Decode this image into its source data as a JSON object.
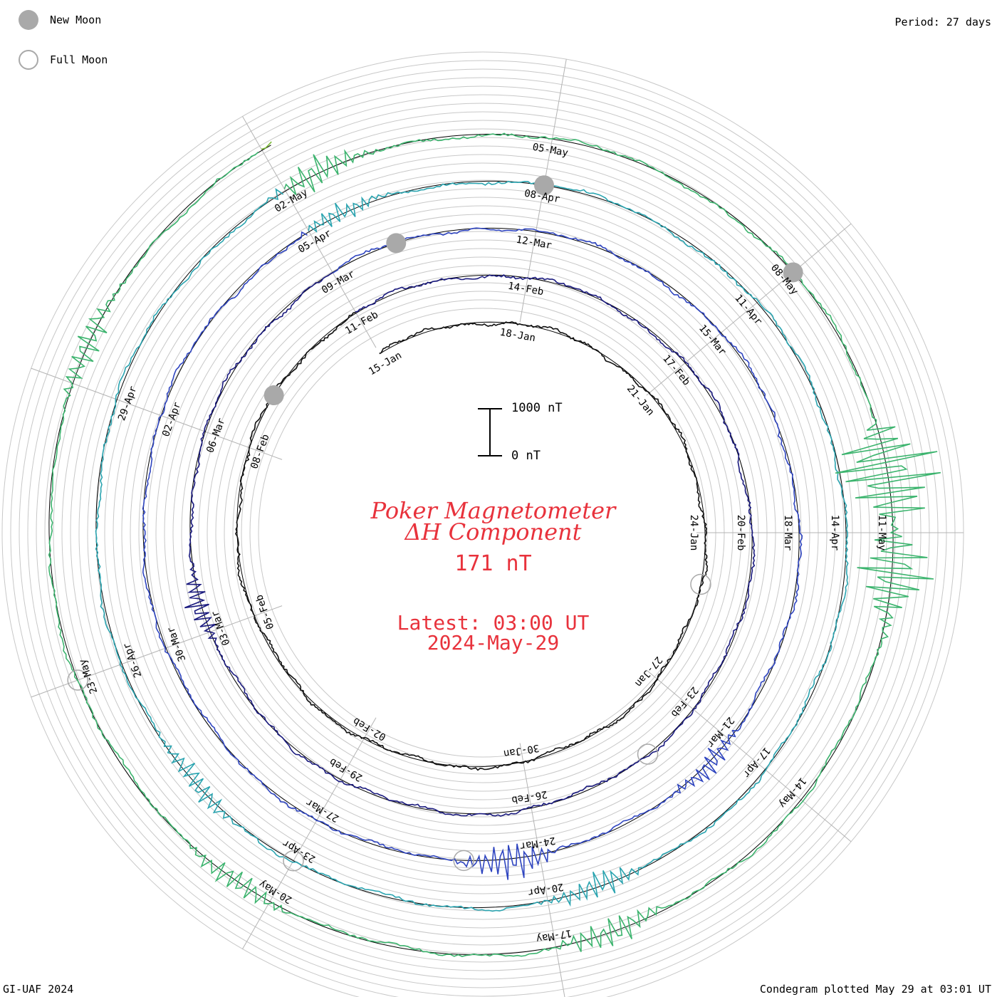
{
  "legend": {
    "new_moon_label": "New Moon",
    "full_moon_label": "Full Moon",
    "new_moon_color": "#a9a9a9",
    "full_moon_color": "#a9a9a9"
  },
  "header": {
    "period": "Period: 27 days"
  },
  "title": {
    "line1": "Poker Magnetometer",
    "line2": "ΔH Component",
    "current_value": "171 nT",
    "latest_time": "Latest: 03:00 UT",
    "latest_date": "2024-May-29",
    "color": "#e8323c"
  },
  "scale_bar": {
    "top_label": "1000 nT",
    "bottom_label": "0 nT"
  },
  "footer": {
    "credit": "GI-UAF 2024",
    "plotted": "Condegram plotted May 29 at 03:01 UT"
  },
  "chart_data": {
    "type": "line",
    "subtype": "condegram spiral",
    "period_days": 27,
    "start_date": "2024-01-15",
    "end_date": "2024-05-29",
    "date_labels": [
      "15-Jan",
      "18-Jan",
      "21-Jan",
      "24-Jan",
      "27-Jan",
      "30-Jan",
      "02-Feb",
      "05-Feb",
      "08-Feb",
      "11-Feb",
      "14-Feb",
      "17-Feb",
      "20-Feb",
      "23-Feb",
      "26-Feb",
      "29-Feb",
      "03-Mar",
      "06-Mar",
      "09-Mar",
      "12-Mar",
      "15-Mar",
      "18-Mar",
      "21-Mar",
      "24-Mar",
      "27-Mar",
      "30-Mar",
      "02-Apr",
      "05-Apr",
      "08-Apr",
      "11-Apr",
      "14-Apr",
      "17-Apr",
      "20-Apr",
      "23-Apr",
      "26-Apr",
      "29-Apr",
      "02-May",
      "05-May",
      "08-May",
      "11-May",
      "14-May",
      "17-May",
      "20-May",
      "23-May"
    ],
    "series": [
      {
        "color": "#111111"
      },
      {
        "color": "#1a1a7e"
      },
      {
        "color": "#2f45c0"
      },
      {
        "color": "#2aa4b0"
      },
      {
        "color": "#3cb46e"
      },
      {
        "color": "#7dbd3a"
      },
      {
        "color": "#b2b229"
      },
      {
        "color": "#b8962a"
      },
      {
        "color": "#bd6a1c"
      },
      {
        "color": "#c0420f"
      },
      {
        "color": "#b81414"
      }
    ],
    "new_moons": [
      "2024-02-09",
      "2024-03-10",
      "2024-04-08",
      "2024-05-08"
    ],
    "full_moons": [
      "2024-01-25",
      "2024-02-24",
      "2024-03-25",
      "2024-04-23",
      "2024-05-23"
    ],
    "disturbances": [
      {
        "date": "2024-05-10",
        "amplitude_nT": 1400
      },
      {
        "date": "2024-05-11",
        "amplitude_nT": 900
      },
      {
        "date": "2024-05-02",
        "amplitude_nT": 400
      },
      {
        "date": "2024-03-24",
        "amplitude_nT": 500
      },
      {
        "date": "2024-03-03",
        "amplitude_nT": 350
      },
      {
        "date": "2024-04-19",
        "amplitude_nT": 350
      },
      {
        "date": "2024-05-16",
        "amplitude_nT": 400
      },
      {
        "date": "2024-04-24",
        "amplitude_nT": 300
      },
      {
        "date": "2024-04-05",
        "amplitude_nT": 250
      },
      {
        "date": "2024-03-21",
        "amplitude_nT": 300
      },
      {
        "date": "2024-05-26",
        "amplitude_nT": 350
      },
      {
        "date": "2024-05-20",
        "amplitude_nT": 300
      }
    ],
    "scale_nT": [
      0,
      1000
    ]
  }
}
